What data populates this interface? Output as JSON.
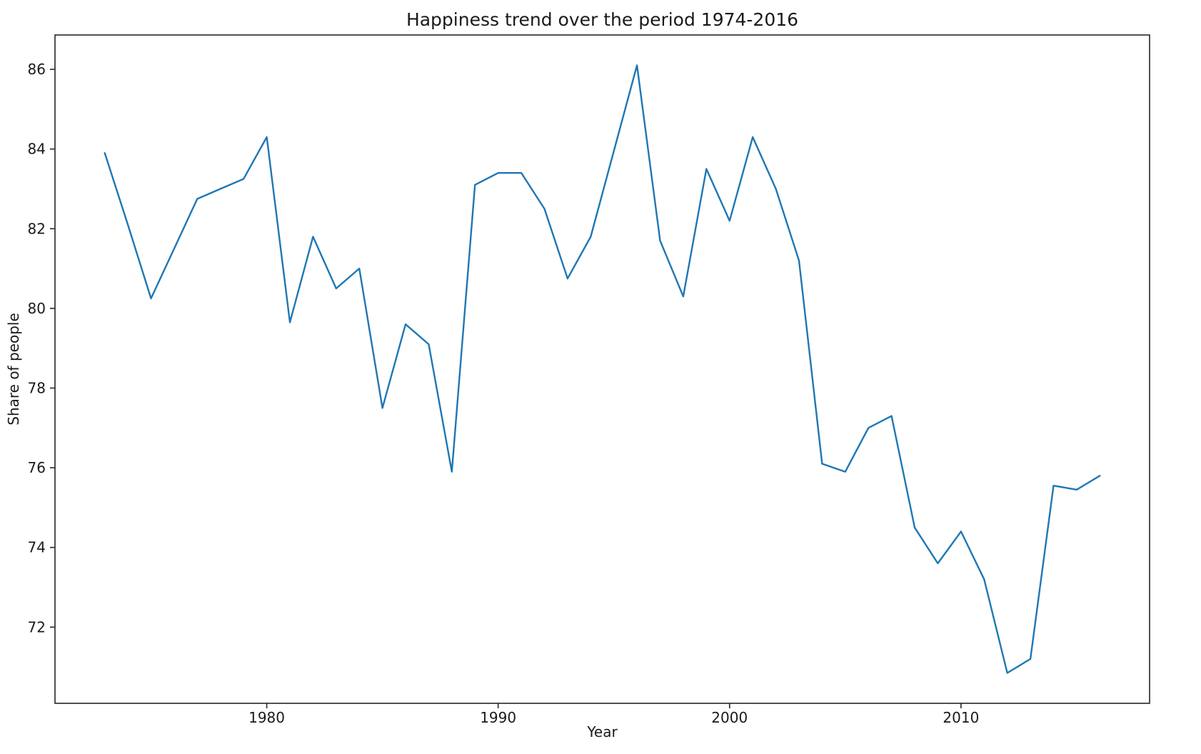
{
  "chart_data": {
    "type": "line",
    "title": "Happiness trend over the period 1974-2016",
    "xlabel": "Year",
    "ylabel": "Share of people",
    "x": [
      1973,
      1974,
      1975,
      1976,
      1977,
      1978,
      1979,
      1980,
      1981,
      1982,
      1983,
      1984,
      1985,
      1986,
      1987,
      1988,
      1989,
      1990,
      1991,
      1992,
      1993,
      1994,
      1995,
      1996,
      1997,
      1998,
      1999,
      2000,
      2001,
      2002,
      2003,
      2004,
      2005,
      2006,
      2007,
      2008,
      2009,
      2010,
      2011,
      2012,
      2013,
      2014,
      2015,
      2016
    ],
    "y": [
      83.9,
      82.1,
      80.25,
      81.5,
      82.75,
      83.0,
      83.25,
      84.3,
      79.65,
      81.8,
      80.5,
      81.0,
      77.5,
      79.6,
      79.1,
      75.9,
      83.1,
      83.4,
      83.4,
      82.5,
      80.75,
      81.8,
      83.95,
      86.1,
      81.7,
      80.3,
      83.5,
      82.2,
      84.3,
      83.0,
      81.2,
      76.1,
      75.9,
      77.0,
      77.3,
      74.5,
      73.6,
      74.4,
      73.2,
      70.85,
      71.2,
      75.55,
      75.45,
      75.8
    ],
    "xlim": [
      1970.85,
      2018.15
    ],
    "ylim": [
      70.0875,
      86.8625
    ],
    "xticks": [
      1980,
      1990,
      2000,
      2010
    ],
    "yticks": [
      72,
      74,
      76,
      78,
      80,
      82,
      84,
      86
    ],
    "line_color": "#1f77b4",
    "background_color": "#ffffff",
    "grid": false,
    "legend_position": "none"
  }
}
